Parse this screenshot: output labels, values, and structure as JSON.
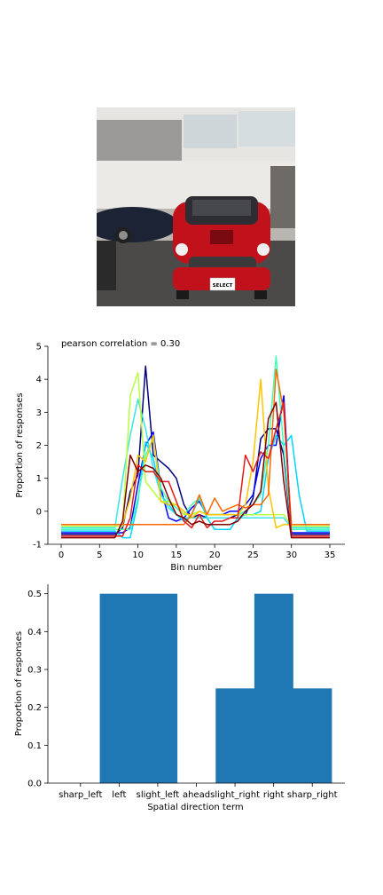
{
  "photo": {
    "subject": "red car in dealership showroom",
    "sign_text": "SELECT"
  },
  "chart_data": [
    {
      "type": "line",
      "title": "pearson correlation = 0.30",
      "xlabel": "Bin number",
      "ylabel": "Proportion of responses",
      "xlim": [
        0,
        35
      ],
      "ylim": [
        -1,
        5
      ],
      "xticks": [
        0,
        5,
        10,
        15,
        20,
        25,
        30,
        35
      ],
      "yticks": [
        -1,
        0,
        1,
        2,
        3,
        4,
        5
      ],
      "grid": false,
      "series": [
        {
          "color": "#000080",
          "values": [
            -0.7,
            -0.7,
            -0.7,
            -0.7,
            -0.7,
            -0.7,
            -0.7,
            -0.7,
            -0.5,
            0.6,
            1.1,
            4.4,
            1.7,
            1.5,
            1.3,
            1.0,
            0.2,
            -0.2,
            -0.1,
            -0.2,
            -0.2,
            -0.2,
            -0.2,
            -0.1,
            -0.1,
            0.4,
            2.2,
            2.5,
            2.5,
            1.7,
            -0.7,
            -0.7,
            -0.7,
            -0.7,
            -0.7,
            -0.7
          ]
        },
        {
          "color": "#0000ff",
          "values": [
            -0.65,
            -0.65,
            -0.65,
            -0.65,
            -0.65,
            -0.65,
            -0.65,
            -0.65,
            -0.65,
            -0.5,
            0.8,
            2.0,
            2.4,
            0.7,
            -0.2,
            -0.3,
            -0.2,
            0.1,
            0.3,
            -0.1,
            -0.1,
            -0.1,
            0.0,
            0.0,
            0.2,
            0.5,
            1.6,
            2.0,
            2.0,
            3.5,
            -0.65,
            -0.65,
            -0.65,
            -0.65,
            -0.65,
            -0.65
          ]
        },
        {
          "color": "#00d4ff",
          "values": [
            -0.6,
            -0.6,
            -0.6,
            -0.6,
            -0.6,
            -0.6,
            -0.6,
            -0.6,
            -0.8,
            -0.8,
            0.3,
            2.1,
            1.6,
            0.5,
            0.2,
            -0.1,
            -0.3,
            -0.1,
            0.4,
            -0.2,
            -0.55,
            -0.55,
            -0.55,
            -0.2,
            -0.1,
            -0.1,
            0.0,
            1.6,
            2.3,
            2.0,
            2.3,
            0.5,
            -0.6,
            -0.6,
            -0.6,
            -0.6
          ]
        },
        {
          "color": "#40ffb7",
          "values": [
            -0.55,
            -0.55,
            -0.55,
            -0.55,
            -0.55,
            -0.55,
            -0.55,
            -0.55,
            -0.55,
            -0.55,
            0.4,
            1.7,
            2.2,
            0.7,
            0.3,
            0.1,
            -0.1,
            0.2,
            0.4,
            -0.1,
            -0.1,
            -0.1,
            -0.1,
            -0.1,
            0.0,
            0.2,
            0.5,
            2.0,
            4.7,
            1.9,
            -0.55,
            -0.55,
            -0.55,
            -0.55,
            -0.55,
            -0.55
          ]
        },
        {
          "color": "#3ae4e4",
          "values": [
            -0.5,
            -0.5,
            -0.5,
            -0.5,
            -0.5,
            -0.5,
            -0.5,
            -0.5,
            1.0,
            2.3,
            3.4,
            2.5,
            1.3,
            0.5,
            0.1,
            -0.1,
            -0.2,
            -0.2,
            -0.2,
            -0.2,
            -0.2,
            -0.2,
            -0.2,
            -0.2,
            -0.2,
            -0.2,
            -0.2,
            -0.2,
            -0.2,
            -0.2,
            -0.5,
            -0.5,
            -0.5,
            -0.5,
            -0.5,
            -0.5
          ]
        },
        {
          "color": "#b7ff40",
          "values": [
            -0.45,
            -0.45,
            -0.45,
            -0.45,
            -0.45,
            -0.45,
            -0.45,
            -0.45,
            -0.45,
            3.5,
            4.2,
            0.9,
            0.6,
            0.3,
            0.3,
            0.2,
            -0.1,
            -0.1,
            0.0,
            -0.1,
            -0.1,
            -0.1,
            -0.1,
            -0.1,
            -0.1,
            -0.1,
            -0.1,
            -0.1,
            -0.1,
            -0.1,
            -0.45,
            -0.45,
            -0.45,
            -0.45,
            -0.45,
            -0.45
          ]
        },
        {
          "color": "#ffc400",
          "values": [
            -0.4,
            -0.4,
            -0.4,
            -0.4,
            -0.4,
            -0.4,
            -0.4,
            -0.4,
            -0.4,
            0.4,
            1.7,
            1.5,
            2.3,
            0.3,
            0.2,
            0.2,
            0.0,
            -0.2,
            0.0,
            -0.1,
            -0.1,
            -0.1,
            -0.1,
            -0.1,
            0.2,
            1.5,
            4.0,
            0.7,
            -0.5,
            -0.4,
            -0.4,
            -0.4,
            -0.4,
            -0.4,
            -0.4,
            -0.4
          ]
        },
        {
          "color": "#ff6800",
          "values": [
            -0.4,
            -0.4,
            -0.4,
            -0.4,
            -0.4,
            -0.4,
            -0.4,
            -0.4,
            -0.4,
            -0.4,
            -0.4,
            -0.4,
            -0.4,
            -0.4,
            -0.4,
            -0.4,
            -0.4,
            -0.1,
            0.5,
            -0.1,
            0.4,
            0.0,
            0.1,
            0.2,
            0.1,
            0.2,
            0.2,
            0.5,
            4.3,
            3.0,
            -0.4,
            -0.4,
            -0.4,
            -0.4,
            -0.4,
            -0.4
          ]
        },
        {
          "color": "#e41a1a",
          "values": [
            -0.75,
            -0.75,
            -0.75,
            -0.75,
            -0.75,
            -0.75,
            -0.75,
            -0.75,
            -0.75,
            -0.2,
            1.4,
            1.2,
            1.2,
            0.9,
            0.9,
            0.3,
            -0.3,
            -0.5,
            -0.1,
            -0.5,
            -0.3,
            -0.3,
            -0.2,
            -0.2,
            1.7,
            1.2,
            1.8,
            1.6,
            2.5,
            3.3,
            -0.75,
            -0.75,
            -0.75,
            -0.75,
            -0.75,
            -0.75
          ]
        },
        {
          "color": "#800000",
          "values": [
            -0.8,
            -0.8,
            -0.8,
            -0.8,
            -0.8,
            -0.8,
            -0.8,
            -0.8,
            -0.3,
            1.7,
            1.2,
            1.4,
            1.3,
            1.0,
            0.4,
            -0.1,
            -0.2,
            -0.4,
            -0.3,
            -0.4,
            -0.4,
            -0.4,
            -0.4,
            -0.3,
            0.0,
            0.2,
            0.6,
            2.8,
            3.3,
            0.9,
            -0.8,
            -0.8,
            -0.8,
            -0.8,
            -0.8,
            -0.8
          ]
        }
      ]
    },
    {
      "type": "bar",
      "xlabel": "Spatial direction term",
      "ylabel": "Proportion of responses",
      "categories": [
        "sharp_left",
        "left",
        "slight_left",
        "ahead",
        "slight_right",
        "right",
        "sharp_right"
      ],
      "values": [
        0.0,
        0.5,
        0.5,
        0.0,
        0.25,
        0.5,
        0.25
      ],
      "ylim": [
        0,
        0.525
      ],
      "yticks": [
        "0.0",
        "0.1",
        "0.2",
        "0.3",
        "0.4",
        "0.5"
      ],
      "color": "#1f77b4",
      "grid": false
    }
  ]
}
